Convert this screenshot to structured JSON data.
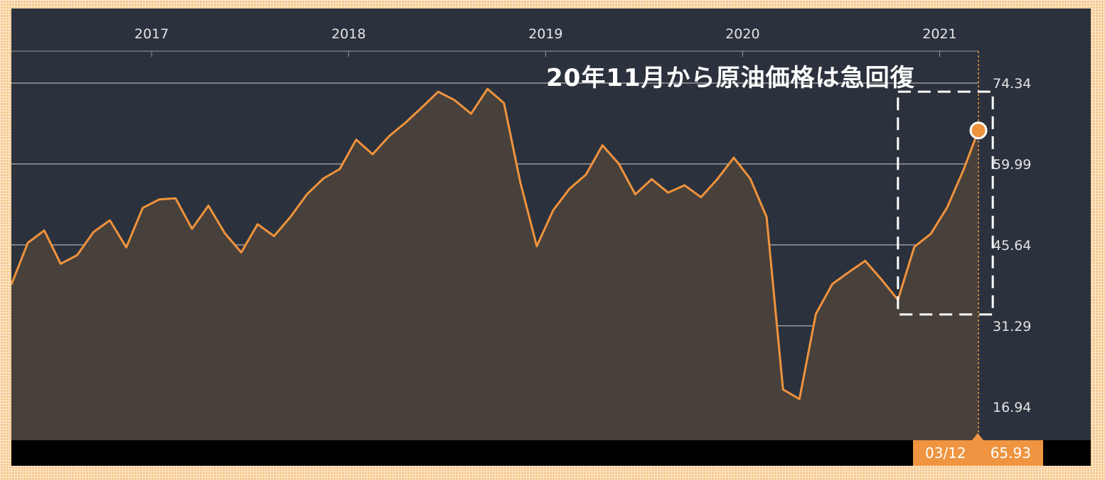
{
  "annotation": "20年11月から原油価格は急回復",
  "badge": {
    "date": "03/12",
    "value": "65.93"
  },
  "colors": {
    "line": "#f0933d",
    "area": "#48413b",
    "grid": "#9a9a9a",
    "background": "#2b323d"
  },
  "chart_data": {
    "type": "area",
    "title": "",
    "xlabel": "",
    "ylabel": "",
    "x_ticks": [
      "2017",
      "2018",
      "2019",
      "2020",
      "2021"
    ],
    "y_ticks": [
      16.94,
      31.29,
      45.64,
      59.99,
      74.34
    ],
    "xlim": [
      "2016-04",
      "2021-03"
    ],
    "ylim": [
      11.0,
      80.0
    ],
    "grid": true,
    "highlight_box": {
      "x_from": "2020-10",
      "x_to": "2021-03",
      "y_from": 33.3,
      "y_to": 72.8
    },
    "last_point": {
      "x": "2021-03-12",
      "y": 65.93
    },
    "series": [
      {
        "x": [
          "2016-04",
          "2016-05",
          "2016-06",
          "2016-07",
          "2016-08",
          "2016-09",
          "2016-10",
          "2016-11",
          "2016-12",
          "2017-01",
          "2017-02",
          "2017-03",
          "2017-04",
          "2017-05",
          "2017-06",
          "2017-07",
          "2017-08",
          "2017-09",
          "2017-10",
          "2017-11",
          "2017-12",
          "2018-01",
          "2018-02",
          "2018-03",
          "2018-04",
          "2018-05",
          "2018-06",
          "2018-07",
          "2018-08",
          "2018-09",
          "2018-10",
          "2018-11",
          "2018-12",
          "2019-01",
          "2019-02",
          "2019-03",
          "2019-04",
          "2019-05",
          "2019-06",
          "2019-07",
          "2019-08",
          "2019-09",
          "2019-10",
          "2019-11",
          "2019-12",
          "2020-01",
          "2020-02",
          "2020-03",
          "2020-04",
          "2020-05",
          "2020-06",
          "2020-07",
          "2020-08",
          "2020-09",
          "2020-10",
          "2020-11",
          "2020-12",
          "2021-01",
          "2021-02",
          "2021-03-12"
        ],
        "values": [
          38.6,
          46.0,
          48.2,
          42.3,
          43.8,
          47.9,
          50.0,
          45.2,
          52.2,
          53.7,
          53.9,
          48.5,
          52.6,
          47.7,
          44.3,
          49.3,
          47.2,
          50.6,
          54.6,
          57.4,
          59.1,
          64.3,
          61.7,
          64.9,
          67.3,
          70.0,
          72.8,
          71.3,
          68.9,
          73.3,
          70.8,
          56.7,
          45.4,
          51.8,
          55.6,
          58.1,
          63.3,
          60.0,
          54.6,
          57.3,
          54.9,
          56.2,
          54.1,
          57.3,
          61.1,
          57.4,
          50.6,
          20.0,
          18.3,
          33.4,
          38.7,
          40.8,
          42.8,
          39.5,
          35.9,
          45.3,
          47.6,
          52.3,
          59.0,
          65.93
        ]
      }
    ]
  }
}
